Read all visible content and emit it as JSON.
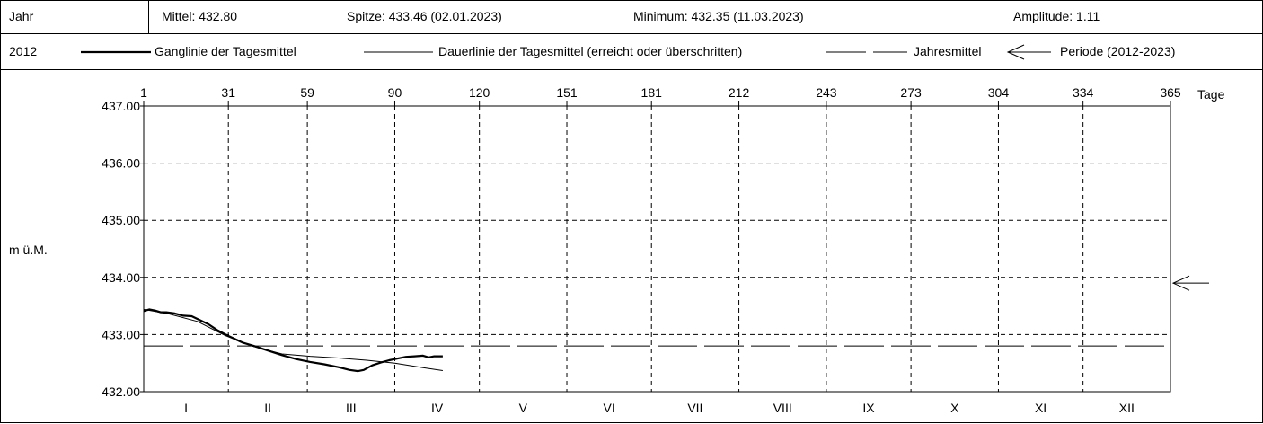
{
  "header": {
    "label": "Jahr",
    "stats": [
      {
        "name": "mittel",
        "text": "Mittel: 432.80"
      },
      {
        "name": "spitze",
        "text": "Spitze: 433.46 (02.01.2023)"
      },
      {
        "name": "minimum",
        "text": "Minimum: 432.35 (11.03.2023)"
      },
      {
        "name": "amplitude",
        "text": "Amplitude: 1.11"
      }
    ]
  },
  "legend_row": {
    "year": "2012",
    "items": [
      {
        "style": "thick",
        "label": "Ganglinie der Tagesmittel"
      },
      {
        "style": "thin",
        "label": "Dauerlinie der Tagesmittel (erreicht oder überschritten)"
      },
      {
        "style": "dashed",
        "label": "Jahresmittel"
      },
      {
        "style": "arrow",
        "label": "Periode (2012-2023)"
      }
    ]
  },
  "chart_data": {
    "type": "line",
    "ylabel": "m ü.M.",
    "ylim": [
      432.0,
      437.0
    ],
    "yticks": [
      432.0,
      433.0,
      434.0,
      435.0,
      436.0,
      437.0
    ],
    "xlim": [
      1,
      365
    ],
    "xlabel": "Tage",
    "xticks": [
      1,
      31,
      59,
      90,
      120,
      151,
      181,
      212,
      243,
      273,
      304,
      334,
      365
    ],
    "months": [
      "I",
      "II",
      "III",
      "IV",
      "V",
      "VI",
      "VII",
      "VIII",
      "IX",
      "X",
      "XI",
      "XII"
    ],
    "jahresmittel": 432.8,
    "periode_arrow_value": 433.9,
    "series": [
      {
        "name": "Ganglinie der Tagesmittel",
        "style": "thick",
        "x": [
          1,
          3,
          5,
          7,
          9,
          12,
          15,
          18,
          21,
          24,
          27,
          30,
          33,
          36,
          40,
          45,
          50,
          55,
          60,
          65,
          70,
          74,
          77,
          79,
          82,
          85,
          88,
          91,
          94,
          97,
          100,
          102,
          104,
          107
        ],
        "y": [
          433.41,
          433.44,
          433.42,
          433.39,
          433.39,
          433.37,
          433.33,
          433.32,
          433.25,
          433.18,
          433.08,
          433.0,
          432.93,
          432.86,
          432.8,
          432.72,
          432.64,
          432.57,
          432.52,
          432.48,
          432.43,
          432.38,
          432.36,
          432.38,
          432.46,
          432.51,
          432.55,
          432.58,
          432.61,
          432.62,
          432.63,
          432.6,
          432.62,
          432.62
        ]
      },
      {
        "name": "Dauerlinie der Tagesmittel (erreicht oder überschritten)",
        "style": "thin",
        "x": [
          1,
          10,
          20,
          30,
          40,
          50,
          60,
          70,
          80,
          90,
          100,
          107
        ],
        "y": [
          433.44,
          433.36,
          433.23,
          432.98,
          432.79,
          432.66,
          432.62,
          432.59,
          432.55,
          432.5,
          432.42,
          432.37
        ]
      }
    ]
  }
}
